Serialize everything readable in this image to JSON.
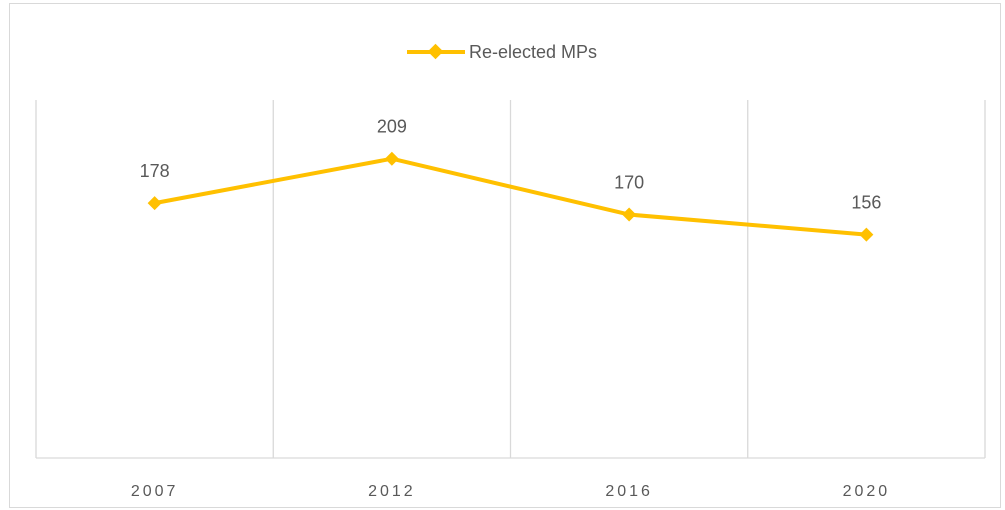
{
  "chart_data": {
    "type": "line",
    "title": "",
    "xlabel": "",
    "ylabel": "",
    "categories": [
      "2007",
      "2012",
      "2016",
      "2020"
    ],
    "series": [
      {
        "name": "Re-elected MPs",
        "values": [
          178,
          209,
          170,
          156
        ],
        "color": "#ffc000",
        "marker": "diamond"
      }
    ],
    "data_labels": [
      "178",
      "209",
      "170",
      "156"
    ],
    "ylim": [
      0,
      250
    ],
    "grid": {
      "vertical": true,
      "horizontal": false,
      "color": "#d9d9d9"
    },
    "legend": {
      "position": "top"
    },
    "text_color": "#595959"
  }
}
